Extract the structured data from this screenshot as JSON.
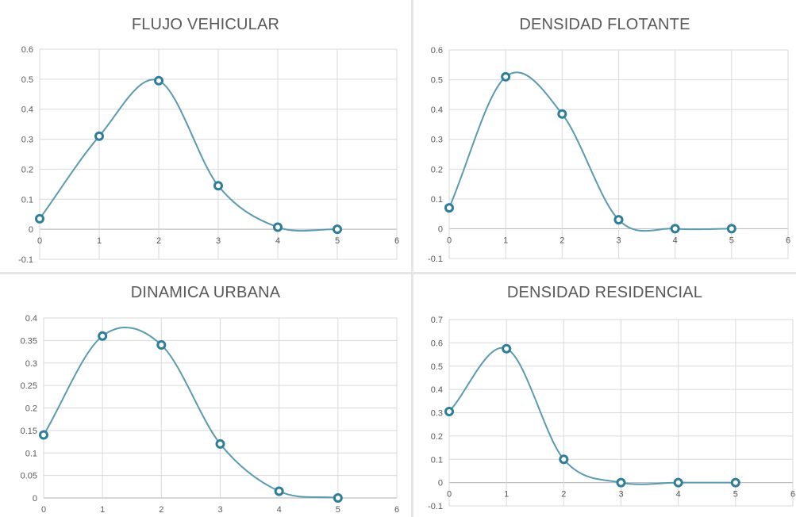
{
  "colors": {
    "line": "#5b9bb0",
    "marker_stroke": "#2e7e99",
    "grid": "#d9d9d9",
    "axis": "#bfbfbf",
    "tick_text": "#595959",
    "title_text": "#595959"
  },
  "chart_data": [
    {
      "type": "scatter",
      "style": "smooth-line-with-markers",
      "title": "FLUJO VEHICULAR",
      "x": [
        0,
        1,
        2,
        3,
        4,
        5
      ],
      "y": [
        0.035,
        0.31,
        0.495,
        0.145,
        0.007,
        0.0
      ],
      "xlim": [
        0,
        6
      ],
      "ylim": [
        -0.1,
        0.6
      ],
      "xticks": [
        "0",
        "1",
        "2",
        "3",
        "4",
        "5",
        "6"
      ],
      "yticks": [
        "-0.1",
        "0",
        "0.1",
        "0.2",
        "0.3",
        "0.4",
        "0.5",
        "0.6"
      ],
      "grid": true,
      "legend": "none"
    },
    {
      "type": "scatter",
      "style": "smooth-line-with-markers",
      "title": "DENSIDAD FLOTANTE",
      "x": [
        0,
        1,
        2,
        3,
        4,
        5
      ],
      "y": [
        0.07,
        0.51,
        0.385,
        0.03,
        0.0,
        0.0
      ],
      "xlim": [
        0,
        6
      ],
      "ylim": [
        -0.1,
        0.6
      ],
      "xticks": [
        "0",
        "1",
        "2",
        "3",
        "4",
        "5",
        "6"
      ],
      "yticks": [
        "-0.1",
        "0",
        "0.1",
        "0.2",
        "0.3",
        "0.4",
        "0.5",
        "0.6"
      ],
      "grid": true,
      "legend": "none"
    },
    {
      "type": "scatter",
      "style": "smooth-line-with-markers",
      "title": "DINAMICA URBANA",
      "x": [
        0,
        1,
        2,
        3,
        4,
        5
      ],
      "y": [
        0.14,
        0.36,
        0.34,
        0.12,
        0.015,
        0.0
      ],
      "xlim": [
        0,
        6
      ],
      "ylim": [
        0,
        0.4
      ],
      "xticks": [
        "0",
        "1",
        "2",
        "3",
        "4",
        "5",
        "6"
      ],
      "yticks": [
        "0",
        "0.05",
        "0.1",
        "0.15",
        "0.2",
        "0.25",
        "0.3",
        "0.35",
        "0.4"
      ],
      "grid": true,
      "legend": "none"
    },
    {
      "type": "scatter",
      "style": "smooth-line-with-markers",
      "title": "DENSIDAD RESIDENCIAL",
      "x": [
        0,
        1,
        2,
        3,
        4,
        5
      ],
      "y": [
        0.305,
        0.575,
        0.1,
        0.0,
        0.0,
        0.0
      ],
      "xlim": [
        0,
        6
      ],
      "ylim": [
        -0.1,
        0.7
      ],
      "xticks": [
        "0",
        "1",
        "2",
        "3",
        "4",
        "5",
        "6"
      ],
      "yticks": [
        "-0.1",
        "0",
        "0.1",
        "0.2",
        "0.3",
        "0.4",
        "0.5",
        "0.6",
        "0.7"
      ],
      "grid": true,
      "legend": "none"
    }
  ]
}
